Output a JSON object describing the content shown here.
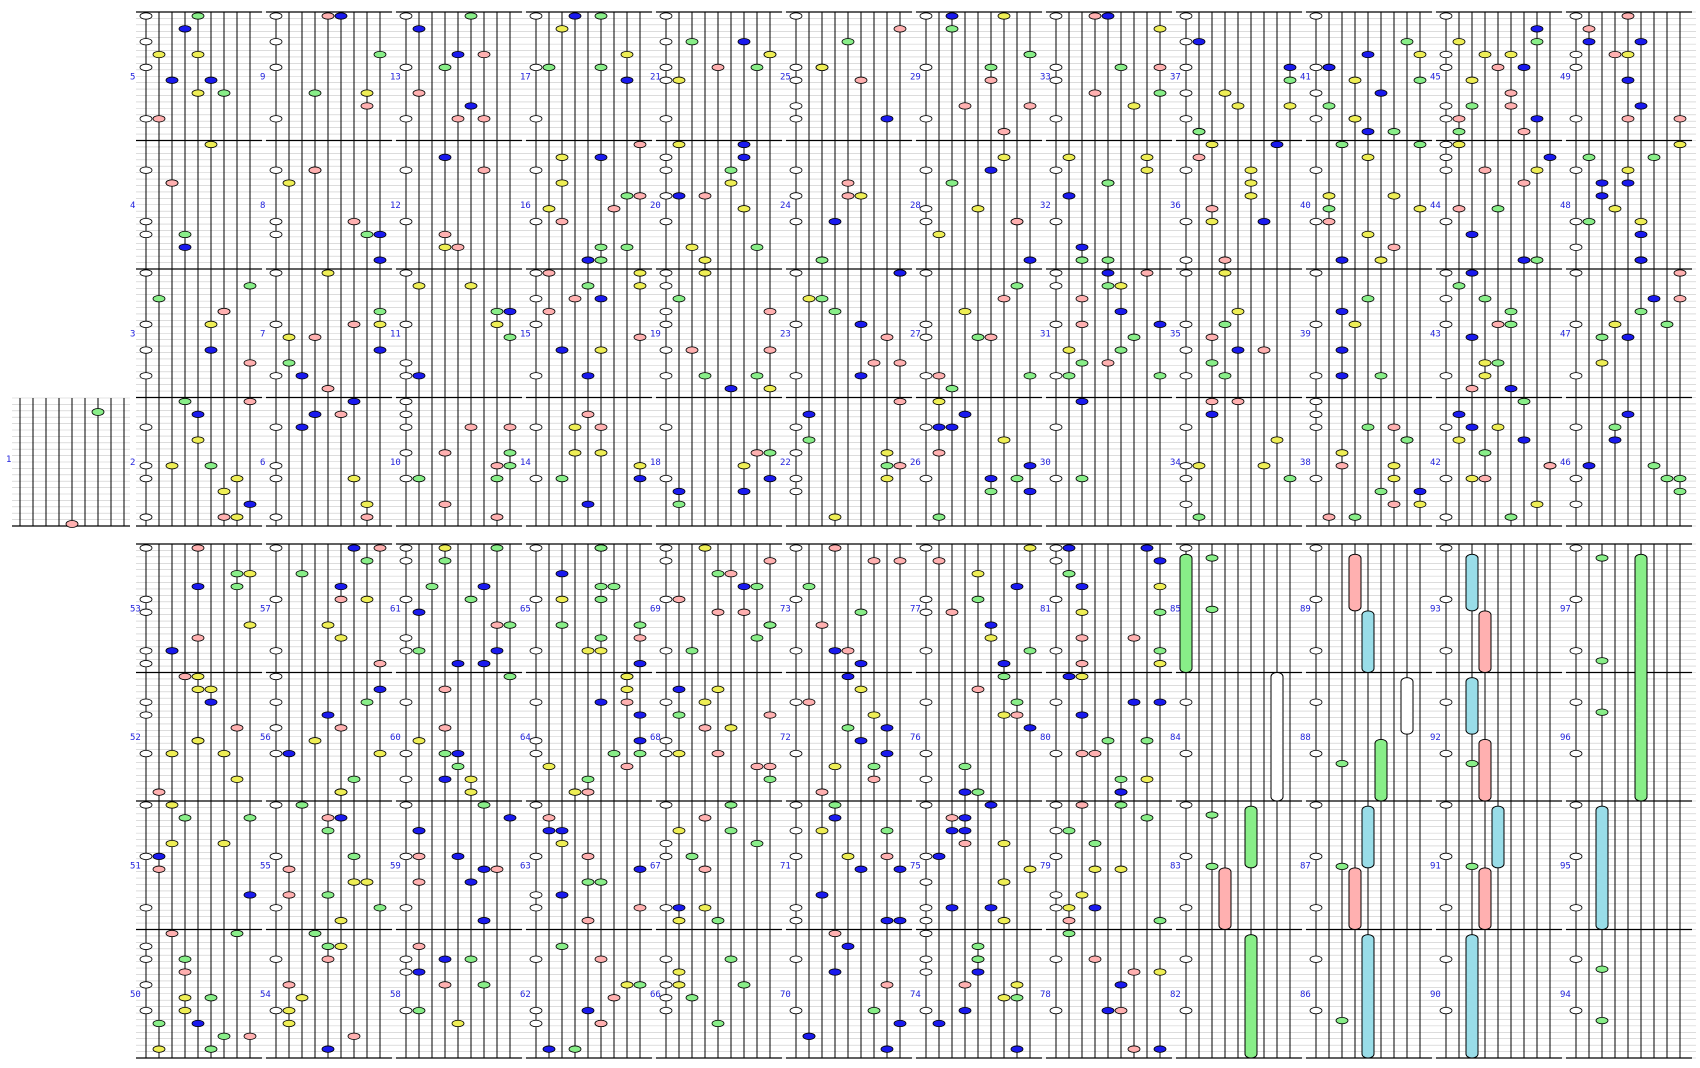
{
  "colors": {
    "accent_label": "#2222dd",
    "line": "#000000",
    "fine_line": "#c8c8c8",
    "green": "#88ee88",
    "pink": "#ffb0b0",
    "yellow": "#eeee55",
    "blue": "#1a1aee",
    "white": "#ffffff",
    "cyan": "#99dde8"
  },
  "measures": {
    "top_rows": [
      [
        "5",
        "9",
        "13",
        "17",
        "21",
        "25",
        "29",
        "33",
        "37",
        "41",
        "45",
        "49"
      ],
      [
        "4",
        "8",
        "12",
        "16",
        "20",
        "24",
        "28",
        "32",
        "36",
        "40",
        "44",
        "48"
      ],
      [
        "3",
        "7",
        "11",
        "15",
        "19",
        "23",
        "27",
        "31",
        "35",
        "39",
        "43",
        "47"
      ],
      [
        "2",
        "6",
        "10",
        "14",
        "18",
        "22",
        "26",
        "30",
        "34",
        "38",
        "42",
        "46"
      ]
    ],
    "pickup": "1",
    "bottom_rows": [
      [
        "53",
        "57",
        "61",
        "65",
        "69",
        "73",
        "77",
        "81",
        "85",
        "89",
        "93",
        "97"
      ],
      [
        "52",
        "56",
        "60",
        "64",
        "68",
        "72",
        "76",
        "80",
        "84",
        "88",
        "92",
        "96"
      ],
      [
        "51",
        "55",
        "59",
        "63",
        "67",
        "71",
        "75",
        "79",
        "83",
        "87",
        "91",
        "95"
      ],
      [
        "50",
        "54",
        "58",
        "62",
        "66",
        "70",
        "74",
        "78",
        "82",
        "86",
        "90",
        "94"
      ]
    ]
  },
  "bars": [
    {
      "label": "green-note",
      "color": "green",
      "band": "bottom",
      "col": 8,
      "s": 0,
      "y0": 0.02,
      "y1": 0.25
    },
    {
      "label": "white-note",
      "color": "white",
      "band": "bottom",
      "col": 8,
      "s": 7,
      "y0": 0.25,
      "y1": 0.5
    },
    {
      "label": "green-note",
      "color": "green",
      "band": "bottom",
      "col": 8,
      "s": 5,
      "y0": 0.51,
      "y1": 0.63
    },
    {
      "label": "pink-note",
      "color": "pink",
      "band": "bottom",
      "col": 8,
      "s": 3,
      "y0": 0.63,
      "y1": 0.75
    },
    {
      "label": "green-note",
      "color": "green",
      "band": "bottom",
      "col": 8,
      "s": 5,
      "y0": 0.76,
      "y1": 1.0
    },
    {
      "label": "pink-note",
      "color": "pink",
      "band": "bottom",
      "col": 9,
      "s": 3,
      "y0": 0.02,
      "y1": 0.13
    },
    {
      "label": "cyan-note",
      "color": "cyan",
      "band": "bottom",
      "col": 9,
      "s": 4,
      "y0": 0.13,
      "y1": 0.25
    },
    {
      "label": "white-note",
      "color": "white",
      "band": "bottom",
      "col": 9,
      "s": 7,
      "y0": 0.26,
      "y1": 0.37
    },
    {
      "label": "green-note",
      "color": "green",
      "band": "bottom",
      "col": 9,
      "s": 5,
      "y0": 0.38,
      "y1": 0.5
    },
    {
      "label": "cyan-note",
      "color": "cyan",
      "band": "bottom",
      "col": 9,
      "s": 4,
      "y0": 0.51,
      "y1": 0.63
    },
    {
      "label": "pink-note",
      "color": "pink",
      "band": "bottom",
      "col": 9,
      "s": 3,
      "y0": 0.63,
      "y1": 0.75
    },
    {
      "label": "cyan-note",
      "color": "cyan",
      "band": "bottom",
      "col": 9,
      "s": 4,
      "y0": 0.76,
      "y1": 1.0
    },
    {
      "label": "cyan-note",
      "color": "cyan",
      "band": "bottom",
      "col": 10,
      "s": 2,
      "y0": 0.02,
      "y1": 0.13
    },
    {
      "label": "pink-note",
      "color": "pink",
      "band": "bottom",
      "col": 10,
      "s": 3,
      "y0": 0.13,
      "y1": 0.25
    },
    {
      "label": "cyan-note",
      "color": "cyan",
      "band": "bottom",
      "col": 10,
      "s": 2,
      "y0": 0.26,
      "y1": 0.37
    },
    {
      "label": "pink-note",
      "color": "pink",
      "band": "bottom",
      "col": 10,
      "s": 3,
      "y0": 0.38,
      "y1": 0.5
    },
    {
      "label": "cyan-note",
      "color": "cyan",
      "band": "bottom",
      "col": 10,
      "s": 4,
      "y0": 0.51,
      "y1": 0.63
    },
    {
      "label": "pink-note",
      "color": "pink",
      "band": "bottom",
      "col": 10,
      "s": 3,
      "y0": 0.63,
      "y1": 0.75
    },
    {
      "label": "cyan-note",
      "color": "cyan",
      "band": "bottom",
      "col": 10,
      "s": 2,
      "y0": 0.76,
      "y1": 1.0
    },
    {
      "label": "green-note",
      "color": "green",
      "band": "bottom",
      "col": 11,
      "s": 5,
      "y0": 0.02,
      "y1": 0.5
    },
    {
      "label": "cyan-note",
      "color": "cyan",
      "band": "bottom",
      "col": 11,
      "s": 2,
      "y0": 0.51,
      "y1": 0.75
    }
  ]
}
